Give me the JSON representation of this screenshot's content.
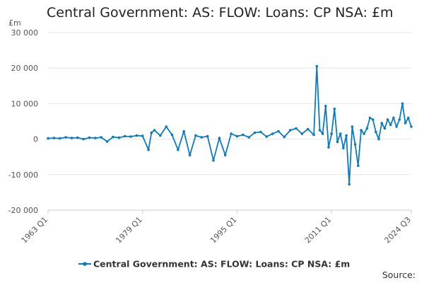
{
  "title": "Central Government: AS: FLOW: Loans: CP NSA: £m",
  "source_label": "Source:",
  "chart_data": {
    "type": "line",
    "title": "Central Government: AS: FLOW: Loans: CP NSA: £m",
    "ylabel": "£m",
    "xlabel": "",
    "ylim": [
      -20000,
      30000
    ],
    "yticks": [
      -20000,
      -10000,
      0,
      10000,
      20000,
      30000
    ],
    "ytick_labels": [
      "-20 000",
      "-10 000",
      "0",
      "10 000",
      "20 000",
      "30 000"
    ],
    "xlim": [
      "1963 Q1",
      "2024 Q3"
    ],
    "xtick_labels": [
      "1963 Q1",
      "1979 Q1",
      "1995 Q1",
      "2011 Q1",
      "2024 Q3"
    ],
    "legend_position": "bottom",
    "grid": "horizontal",
    "colors": {
      "series": "#0b7cc1",
      "grid": "#e6e6e6",
      "axis_text": "#555555"
    },
    "series": [
      {
        "name": "Central Government: AS: FLOW: Loans: CP NSA: £m",
        "x": [
          "1963 Q1",
          "1964 Q1",
          "1965 Q1",
          "1966 Q1",
          "1967 Q1",
          "1968 Q1",
          "1969 Q1",
          "1970 Q1",
          "1971 Q1",
          "1972 Q1",
          "1973 Q1",
          "1974 Q1",
          "1975 Q1",
          "1976 Q1",
          "1977 Q1",
          "1978 Q1",
          "1979 Q1",
          "1980 Q1",
          "1980 Q3",
          "1981 Q1",
          "1982 Q1",
          "1983 Q1",
          "1984 Q1",
          "1985 Q1",
          "1986 Q1",
          "1987 Q1",
          "1988 Q1",
          "1989 Q1",
          "1990 Q1",
          "1991 Q1",
          "1992 Q1",
          "1993 Q1",
          "1994 Q1",
          "1995 Q1",
          "1996 Q1",
          "1997 Q1",
          "1998 Q1",
          "1999 Q1",
          "2000 Q1",
          "2001 Q1",
          "2002 Q1",
          "2003 Q1",
          "2004 Q1",
          "2005 Q1",
          "2006 Q1",
          "2007 Q1",
          "2008 Q1",
          "2008 Q3",
          "2009 Q1",
          "2009 Q3",
          "2010 Q1",
          "2010 Q3",
          "2011 Q1",
          "2011 Q3",
          "2012 Q1",
          "2012 Q3",
          "2013 Q1",
          "2013 Q3",
          "2014 Q1",
          "2014 Q3",
          "2015 Q1",
          "2015 Q3",
          "2016 Q1",
          "2016 Q3",
          "2017 Q1",
          "2017 Q3",
          "2018 Q1",
          "2018 Q3",
          "2019 Q1",
          "2019 Q3",
          "2020 Q1",
          "2020 Q3",
          "2021 Q1",
          "2021 Q3",
          "2022 Q1",
          "2022 Q3",
          "2023 Q1",
          "2023 Q3",
          "2024 Q1",
          "2024 Q3"
        ],
        "values": [
          200,
          300,
          200,
          500,
          300,
          400,
          0,
          400,
          300,
          500,
          -700,
          600,
          400,
          800,
          700,
          1000,
          900,
          -3000,
          1800,
          2500,
          1000,
          3500,
          1200,
          -3000,
          2200,
          -4500,
          1000,
          500,
          800,
          -6000,
          300,
          -4500,
          1500,
          800,
          1200,
          500,
          1800,
          2000,
          700,
          1500,
          2200,
          600,
          2500,
          3000,
          1500,
          2800,
          1200,
          20500,
          2500,
          1500,
          9300,
          -2300,
          1500,
          8500,
          -800,
          1500,
          -2500,
          1000,
          -12700,
          3500,
          -1500,
          -7500,
          2500,
          1500,
          3000,
          6000,
          5500,
          2000,
          0,
          4500,
          3000,
          5500,
          4000,
          6000,
          3500,
          5500,
          10000,
          4500,
          6000,
          3500
        ]
      }
    ]
  }
}
